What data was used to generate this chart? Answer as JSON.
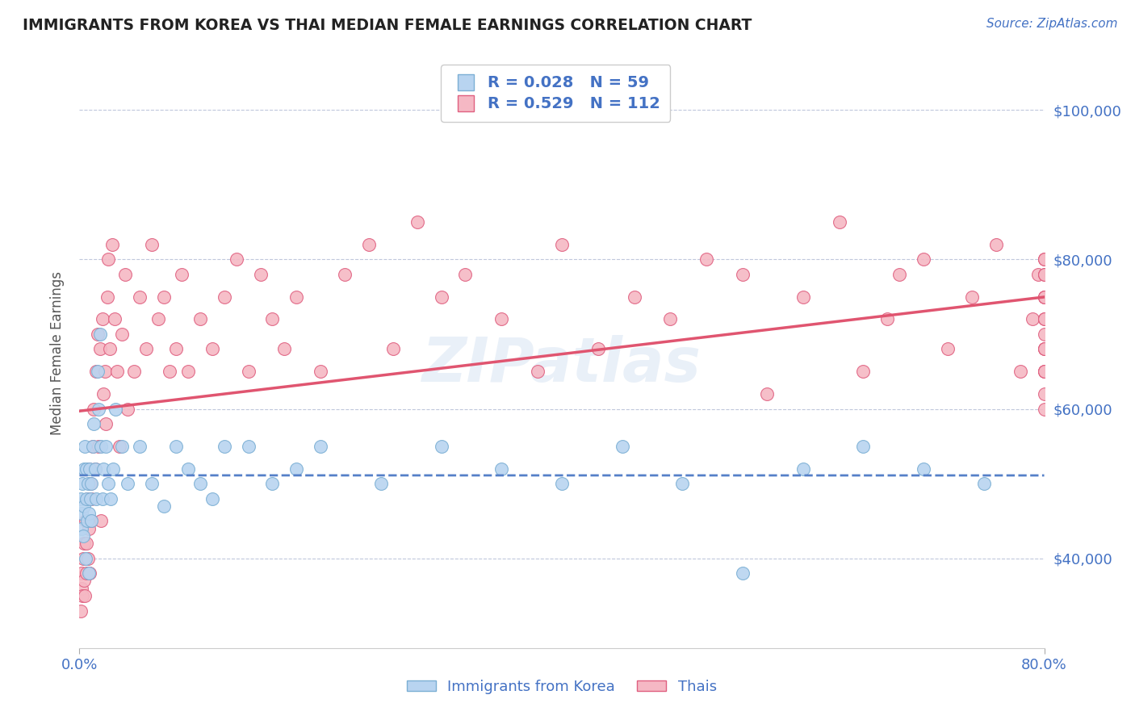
{
  "title": "IMMIGRANTS FROM KOREA VS THAI MEDIAN FEMALE EARNINGS CORRELATION CHART",
  "source_text": "Source: ZipAtlas.com",
  "ylabel": "Median Female Earnings",
  "xmin": 0.0,
  "xmax": 80.0,
  "ymin": 28000,
  "ymax": 107000,
  "yticks": [
    40000,
    60000,
    80000,
    100000
  ],
  "ytick_labels": [
    "$40,000",
    "$60,000",
    "$80,000",
    "$100,000"
  ],
  "korea_color": "#b8d4f0",
  "korea_edge_color": "#7bafd4",
  "thai_color": "#f5b8c4",
  "thai_edge_color": "#e06080",
  "korea_line_color": "#5580c8",
  "thai_line_color": "#e05570",
  "legend_korea_label": "R = 0.028   N = 59",
  "legend_thai_label": "R = 0.529   N = 112",
  "title_color": "#222222",
  "axis_label_color": "#4472C4",
  "grid_color": "#c0c8dc",
  "watermark": "ZIPatlas",
  "korea_x": [
    0.1,
    0.15,
    0.2,
    0.25,
    0.3,
    0.35,
    0.4,
    0.45,
    0.5,
    0.55,
    0.6,
    0.65,
    0.7,
    0.75,
    0.8,
    0.85,
    0.9,
    0.95,
    1.0,
    1.1,
    1.2,
    1.3,
    1.4,
    1.5,
    1.6,
    1.7,
    1.8,
    1.9,
    2.0,
    2.2,
    2.4,
    2.6,
    2.8,
    3.0,
    3.5,
    4.0,
    5.0,
    6.0,
    7.0,
    8.0,
    9.0,
    10.0,
    11.0,
    12.0,
    14.0,
    16.0,
    18.0,
    20.0,
    25.0,
    30.0,
    35.0,
    40.0,
    45.0,
    50.0,
    55.0,
    60.0,
    65.0,
    70.0,
    75.0
  ],
  "korea_y": [
    48000,
    44000,
    46000,
    50000,
    43000,
    52000,
    47000,
    55000,
    40000,
    48000,
    52000,
    45000,
    50000,
    38000,
    46000,
    52000,
    48000,
    50000,
    45000,
    55000,
    58000,
    52000,
    48000,
    65000,
    60000,
    70000,
    55000,
    48000,
    52000,
    55000,
    50000,
    48000,
    52000,
    60000,
    55000,
    50000,
    55000,
    50000,
    47000,
    55000,
    52000,
    50000,
    48000,
    55000,
    55000,
    50000,
    52000,
    55000,
    50000,
    55000,
    52000,
    50000,
    55000,
    50000,
    38000,
    52000,
    55000,
    52000,
    50000
  ],
  "thai_x": [
    0.1,
    0.15,
    0.2,
    0.25,
    0.3,
    0.35,
    0.4,
    0.45,
    0.5,
    0.55,
    0.6,
    0.65,
    0.7,
    0.75,
    0.8,
    0.85,
    0.9,
    0.95,
    1.0,
    1.1,
    1.2,
    1.3,
    1.4,
    1.5,
    1.6,
    1.7,
    1.8,
    1.9,
    2.0,
    2.1,
    2.2,
    2.3,
    2.4,
    2.5,
    2.7,
    2.9,
    3.1,
    3.3,
    3.5,
    3.8,
    4.0,
    4.5,
    5.0,
    5.5,
    6.0,
    6.5,
    7.0,
    7.5,
    8.0,
    8.5,
    9.0,
    10.0,
    11.0,
    12.0,
    13.0,
    14.0,
    15.0,
    16.0,
    17.0,
    18.0,
    20.0,
    22.0,
    24.0,
    26.0,
    28.0,
    30.0,
    32.0,
    35.0,
    38.0,
    40.0,
    43.0,
    46.0,
    49.0,
    52.0,
    55.0,
    57.0,
    60.0,
    63.0,
    65.0,
    67.0,
    68.0,
    70.0,
    72.0,
    74.0,
    76.0,
    78.0,
    79.0,
    79.5,
    80.0,
    80.0,
    80.0,
    80.0,
    80.0,
    80.0,
    80.0,
    80.0,
    80.0,
    80.0,
    80.0,
    80.0,
    80.0,
    80.0,
    80.0,
    80.0,
    80.0,
    80.0,
    80.0,
    80.0,
    80.0,
    80.0,
    80.0,
    80.0
  ],
  "thai_y": [
    33000,
    36000,
    38000,
    35000,
    40000,
    37000,
    42000,
    35000,
    45000,
    38000,
    42000,
    48000,
    40000,
    52000,
    44000,
    38000,
    50000,
    45000,
    48000,
    55000,
    60000,
    52000,
    65000,
    70000,
    55000,
    68000,
    45000,
    72000,
    62000,
    65000,
    58000,
    75000,
    80000,
    68000,
    82000,
    72000,
    65000,
    55000,
    70000,
    78000,
    60000,
    65000,
    75000,
    68000,
    82000,
    72000,
    75000,
    65000,
    68000,
    78000,
    65000,
    72000,
    68000,
    75000,
    80000,
    65000,
    78000,
    72000,
    68000,
    75000,
    65000,
    78000,
    82000,
    68000,
    85000,
    75000,
    78000,
    72000,
    65000,
    82000,
    68000,
    75000,
    72000,
    80000,
    78000,
    62000,
    75000,
    85000,
    65000,
    72000,
    78000,
    80000,
    68000,
    75000,
    82000,
    65000,
    72000,
    78000,
    60000,
    65000,
    70000,
    75000,
    68000,
    80000,
    72000,
    65000,
    78000,
    75000,
    62000,
    68000,
    72000,
    80000,
    65000,
    78000,
    75000,
    68000,
    80000,
    72000,
    65000,
    78000,
    75000,
    68000
  ]
}
